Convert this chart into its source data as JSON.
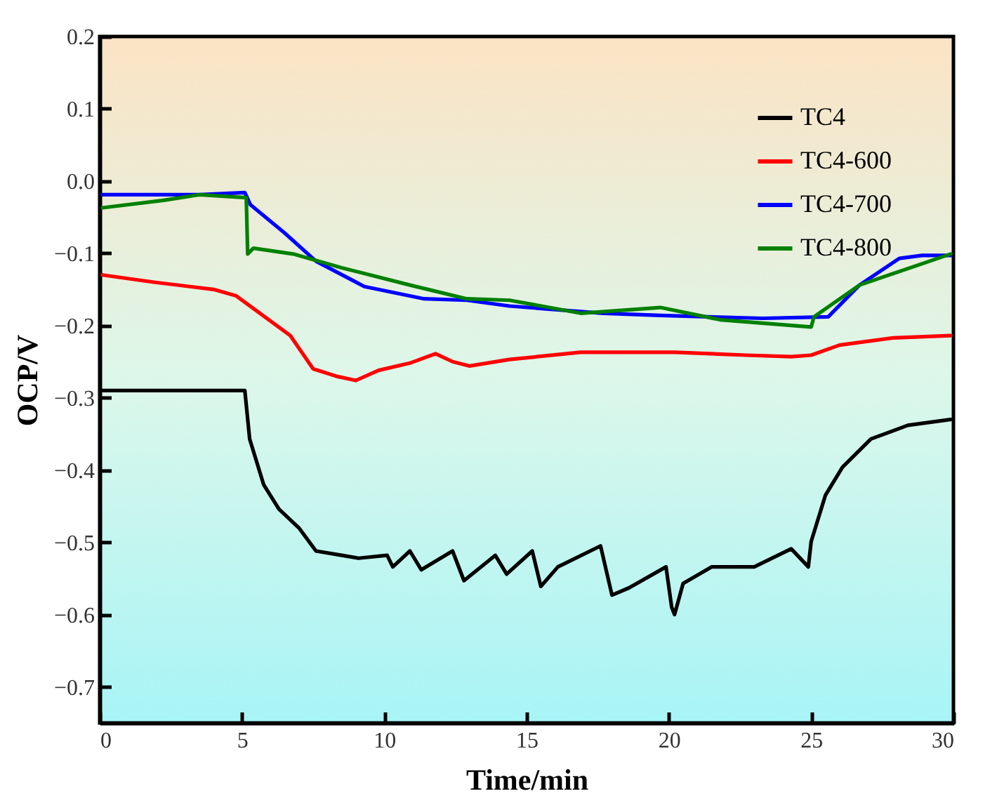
{
  "chart_data": {
    "type": "line",
    "xlabel": "Time/min",
    "ylabel": "OCP/V",
    "xlim": [
      0,
      30
    ],
    "xticks": [
      0,
      5,
      10,
      15,
      20,
      25,
      30
    ],
    "ylim": [
      -0.75,
      0.2
    ],
    "yticks": [
      -0.7,
      -0.6,
      -0.5,
      -0.4,
      -0.3,
      -0.2,
      -0.1,
      {
        "value": 0,
        "label": "0.0"
      },
      0.1,
      0.2
    ],
    "grid": false,
    "legend": "top right",
    "line_style": "solid",
    "series": [
      {
        "name": "TC4",
        "color": "#000000",
        "x": [
          0,
          5.1,
          5.27,
          5.76,
          6.3,
          7.0,
          7.6,
          8.5,
          9.1,
          10.1,
          10.3,
          10.9,
          11.3,
          12.4,
          12.8,
          13.9,
          14.3,
          15.2,
          15.5,
          16.1,
          17.6,
          18.0,
          18.6,
          19.9,
          20.1,
          20.2,
          20.5,
          21.5,
          23.0,
          24.3,
          24.9,
          25.0,
          25.5,
          26.1,
          27.1,
          28.4,
          29.9
        ],
        "values": [
          -0.29,
          -0.29,
          -0.357,
          -0.42,
          -0.454,
          -0.48,
          -0.512,
          -0.518,
          -0.522,
          -0.518,
          -0.534,
          -0.512,
          -0.538,
          -0.512,
          -0.553,
          -0.518,
          -0.544,
          -0.512,
          -0.561,
          -0.534,
          -0.505,
          -0.573,
          -0.563,
          -0.534,
          -0.59,
          -0.6,
          -0.557,
          -0.534,
          -0.534,
          -0.509,
          -0.534,
          -0.499,
          -0.435,
          -0.396,
          -0.357,
          -0.338,
          -0.33
        ]
      },
      {
        "name": "TC4-600",
        "color": "#ff0000",
        "x": [
          0.1,
          1.9,
          4.0,
          4.8,
          5.8,
          6.7,
          7.5,
          8.3,
          9.0,
          9.8,
          10.9,
          11.8,
          12.4,
          13.0,
          14.4,
          16.9,
          20.2,
          22.7,
          24.3,
          25.0,
          26.0,
          27.9,
          29.9
        ],
        "values": [
          -0.13,
          -0.14,
          -0.15,
          -0.159,
          -0.188,
          -0.214,
          -0.26,
          -0.27,
          -0.276,
          -0.262,
          -0.252,
          -0.239,
          -0.25,
          -0.256,
          -0.247,
          -0.237,
          -0.237,
          -0.241,
          -0.243,
          -0.241,
          -0.227,
          -0.217,
          -0.214
        ]
      },
      {
        "name": "TC4-700",
        "color": "#0000ff",
        "x": [
          0.1,
          3.5,
          5.1,
          5.3,
          6.5,
          7.6,
          9.3,
          11.4,
          12.9,
          14.4,
          17.7,
          19.7,
          23.3,
          25.6,
          26.7,
          28.1,
          28.9,
          29.9
        ],
        "values": [
          -0.019,
          -0.019,
          -0.016,
          -0.033,
          -0.072,
          -0.111,
          -0.146,
          -0.163,
          -0.165,
          -0.173,
          -0.183,
          -0.186,
          -0.19,
          -0.188,
          -0.144,
          -0.107,
          -0.103,
          -0.103
        ]
      },
      {
        "name": "TC4-800",
        "color": "#008000",
        "x": [
          0.1,
          2.2,
          3.5,
          5.15,
          5.2,
          5.4,
          6.8,
          8.5,
          10.9,
          12.9,
          14.4,
          16.9,
          19.7,
          21.8,
          25.0,
          25.1,
          26.7,
          29.9
        ],
        "values": [
          -0.037,
          -0.027,
          -0.019,
          -0.023,
          -0.101,
          -0.093,
          -0.101,
          -0.12,
          -0.144,
          -0.163,
          -0.165,
          -0.183,
          -0.175,
          -0.192,
          -0.202,
          -0.188,
          -0.144,
          -0.101
        ]
      }
    ]
  }
}
